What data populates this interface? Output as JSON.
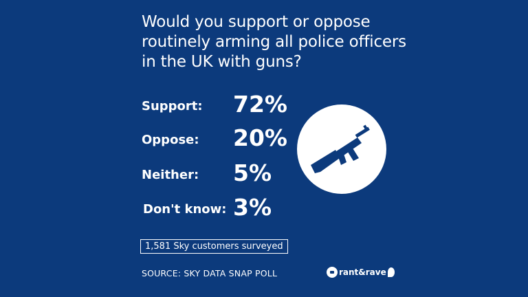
{
  "question_lines": [
    "Would you support or oppose",
    "routinely arming all police officers",
    "in the UK with guns?"
  ],
  "chart_data": {
    "type": "table",
    "categories": [
      "Support:",
      "Oppose:",
      "Neither:",
      "Don't know:"
    ],
    "values": [
      72,
      20,
      5,
      3
    ],
    "value_labels": [
      "72%",
      "20%",
      "5%",
      "3%"
    ]
  },
  "icon": "gun-icon",
  "sample_note": "1,581 Sky customers surveyed",
  "source": "SOURCE: SKY DATA SNAP POLL",
  "logo_text": "rant&rave",
  "colors": {
    "background": "#0c3a7c",
    "text": "#ffffff",
    "icon_fill": "#0c3a7c"
  }
}
